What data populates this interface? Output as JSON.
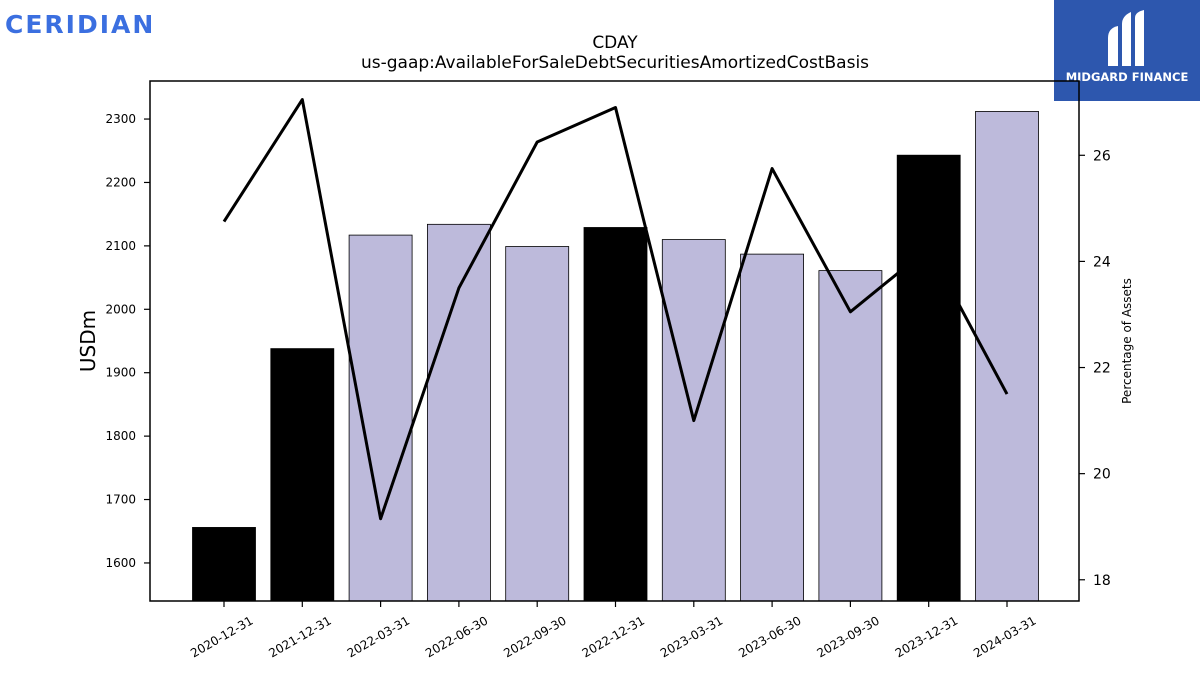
{
  "branding": {
    "company_name": "CERIDIAN",
    "publisher_name": "MIDGARD FINANCE",
    "company_color": "#3b6fe0",
    "publisher_color": "#2d57ae"
  },
  "chart_data": {
    "type": "bar",
    "title": "CDAY",
    "subtitle": "us-gaap:AvailableForSaleDebtSecuritiesAmortizedCostBasis",
    "ylabel": "USDm",
    "y2label": "Percentage of Assets",
    "ylim": [
      1540,
      2360
    ],
    "y2lim": [
      17.6,
      27.4
    ],
    "yticks": [
      1600,
      1700,
      1800,
      1900,
      2000,
      2100,
      2200,
      2300
    ],
    "y2ticks": [
      18,
      20,
      22,
      24,
      26
    ],
    "grid": false,
    "categories": [
      "2020-12-31",
      "2021-12-31",
      "2022-03-31",
      "2022-06-30",
      "2022-09-30",
      "2022-12-31",
      "2023-03-31",
      "2023-06-30",
      "2023-09-30",
      "2023-12-31",
      "2024-03-31"
    ],
    "series": [
      {
        "type": "bar",
        "axis": "left",
        "values": [
          1656,
          1938,
          2117,
          2134,
          2099,
          2129,
          2110,
          2087,
          2061,
          2243,
          2312
        ],
        "colors": [
          "#000000",
          "#000000",
          "#bdbadb",
          "#bdbadb",
          "#bdbadb",
          "#000000",
          "#bdbadb",
          "#bdbadb",
          "#bdbadb",
          "#000000",
          "#bdbadb"
        ]
      },
      {
        "type": "line",
        "axis": "right",
        "color": "#000000",
        "values": [
          24.75,
          27.05,
          19.15,
          23.5,
          26.25,
          26.9,
          21.0,
          25.75,
          23.05,
          24.25,
          21.5
        ]
      }
    ]
  }
}
